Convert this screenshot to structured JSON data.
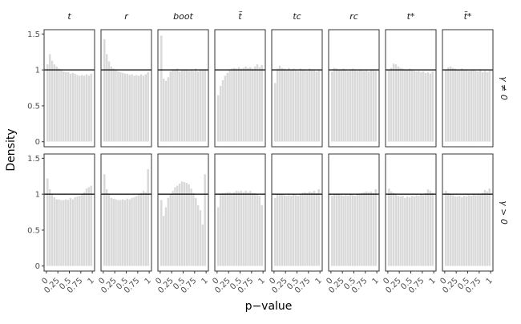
{
  "chart_data": {
    "type": "histogram",
    "xlabel": "p−value",
    "ylabel": "Density",
    "columns": [
      "t",
      "r",
      "boot",
      "t̃",
      "tᴄ",
      "rᴄ",
      "t*",
      "t̃*"
    ],
    "rows": [
      "γ ≠ 0",
      "γ > 0"
    ],
    "bins": [
      0,
      0.05,
      0.1,
      0.15,
      0.2,
      0.25,
      0.3,
      0.35,
      0.4,
      0.45,
      0.5,
      0.55,
      0.6,
      0.65,
      0.7,
      0.75,
      0.8,
      0.85,
      0.9,
      0.95,
      1
    ],
    "xlim": [
      -0.05,
      1.05
    ],
    "ylim": [
      -0.07,
      1.56
    ],
    "xticks": [
      0,
      0.25,
      0.5,
      0.75,
      1
    ],
    "yticks": [
      0,
      0.5,
      1,
      1.5
    ],
    "hline": 1,
    "color": "#d9d9d9",
    "panels": [
      [
        [
          1.08,
          1.22,
          1.13,
          1.08,
          1.05,
          1.02,
          1.0,
          0.98,
          0.97,
          0.97,
          0.95,
          0.96,
          0.95,
          0.93,
          0.92,
          0.93,
          0.92,
          0.94,
          0.92,
          0.95
        ],
        [
          1.43,
          1.22,
          1.12,
          1.05,
          1.02,
          1.0,
          0.98,
          0.97,
          0.96,
          0.95,
          0.95,
          0.93,
          0.94,
          0.92,
          0.93,
          0.92,
          0.94,
          0.92,
          0.94,
          0.97
        ],
        [
          1.48,
          0.88,
          0.85,
          0.9,
          0.98,
          1.0,
          1.0,
          1.02,
          0.98,
          1.0,
          1.0,
          1.01,
          0.99,
          1.0,
          0.99,
          1.02,
          0.98,
          1.0,
          1.0,
          1.0
        ],
        [
          0.65,
          0.78,
          0.86,
          0.92,
          0.96,
          1.0,
          1.02,
          1.03,
          1.02,
          1.04,
          1.02,
          1.03,
          1.05,
          1.03,
          1.04,
          1.02,
          1.05,
          1.08,
          1.04,
          1.07
        ],
        [
          0.82,
          1.02,
          1.06,
          1.03,
          1.02,
          1.01,
          1.03,
          1.0,
          1.02,
          1.01,
          0.99,
          1.02,
          1.0,
          1.01,
          0.99,
          1.02,
          1.0,
          1.0,
          0.98,
          1.0
        ],
        [
          0.98,
          1.03,
          1.02,
          1.01,
          1.0,
          1.02,
          1.0,
          0.99,
          1.0,
          1.02,
          1.0,
          0.99,
          1.01,
          1.0,
          0.99,
          1.0,
          0.98,
          1.01,
          1.0,
          0.99
        ],
        [
          1.0,
          1.03,
          1.09,
          1.08,
          1.05,
          1.03,
          1.02,
          1.01,
          1.0,
          1.02,
          1.0,
          0.99,
          0.98,
          0.99,
          0.97,
          0.98,
          0.96,
          0.97,
          0.95,
          0.98
        ],
        [
          1.0,
          1.04,
          1.05,
          1.03,
          1.02,
          1.01,
          1.0,
          1.02,
          1.0,
          1.01,
          0.99,
          1.0,
          1.0,
          0.99,
          0.98,
          1.0,
          0.97,
          0.99,
          0.97,
          0.99
        ]
      ],
      [
        [
          1.22,
          1.07,
          1.0,
          0.96,
          0.93,
          0.93,
          0.92,
          0.92,
          0.93,
          0.92,
          0.95,
          0.93,
          0.96,
          0.97,
          0.98,
          1.0,
          1.03,
          1.08,
          1.1,
          1.12
        ],
        [
          1.28,
          1.07,
          1.0,
          0.95,
          0.94,
          0.93,
          0.92,
          0.92,
          0.93,
          0.92,
          0.94,
          0.93,
          0.95,
          0.96,
          0.98,
          1.0,
          1.02,
          1.05,
          1.03,
          1.35
        ],
        [
          0.92,
          0.7,
          0.82,
          0.95,
          1.0,
          1.05,
          1.1,
          1.12,
          1.15,
          1.18,
          1.17,
          1.16,
          1.14,
          1.08,
          1.02,
          0.95,
          0.85,
          0.78,
          0.58,
          1.28
        ],
        [
          0.82,
          1.0,
          1.02,
          1.02,
          1.03,
          1.03,
          1.02,
          1.03,
          1.05,
          1.04,
          1.05,
          1.03,
          1.05,
          1.03,
          1.05,
          1.02,
          1.02,
          1.0,
          0.98,
          0.85
        ],
        [
          0.95,
          1.0,
          1.0,
          1.01,
          0.99,
          0.98,
          0.99,
          0.98,
          1.0,
          0.99,
          0.98,
          1.0,
          1.02,
          1.03,
          1.02,
          1.04,
          1.03,
          1.05,
          1.02,
          1.07
        ],
        [
          0.98,
          1.0,
          1.01,
          1.0,
          0.99,
          0.98,
          0.99,
          0.98,
          1.0,
          0.99,
          0.98,
          1.0,
          1.01,
          1.02,
          1.03,
          1.04,
          1.03,
          1.04,
          1.02,
          1.07
        ],
        [
          1.08,
          1.04,
          1.02,
          1.0,
          0.98,
          0.97,
          0.98,
          0.95,
          0.97,
          0.96,
          0.98,
          0.97,
          0.99,
          0.98,
          1.0,
          0.99,
          1.02,
          1.07,
          1.05,
          1.02
        ],
        [
          1.05,
          1.02,
          1.0,
          0.99,
          0.97,
          0.97,
          0.98,
          0.96,
          0.98,
          0.97,
          0.99,
          0.98,
          1.0,
          0.99,
          1.01,
          1.0,
          1.02,
          1.06,
          1.04,
          1.08
        ]
      ]
    ]
  }
}
